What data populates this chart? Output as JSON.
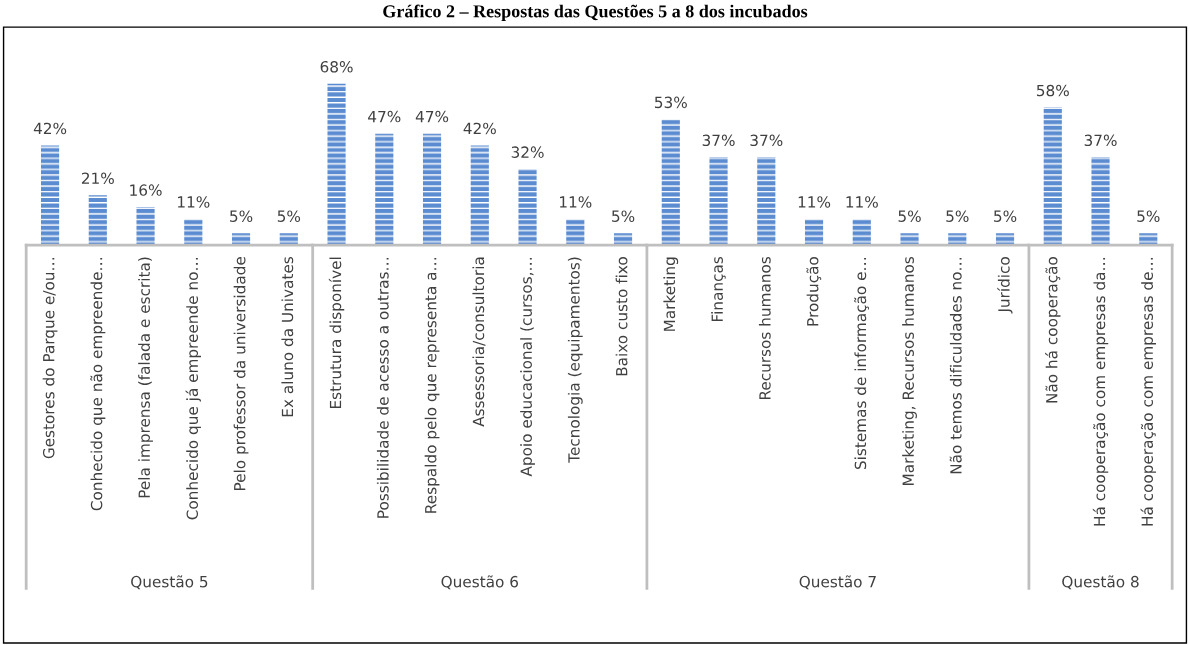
{
  "chart_data": [
    {
      "type": "bar",
      "xlabel": "Questão 5",
      "categories": [
        "Gestores do Parque e/ou…",
        "Conhecido que não empreende…",
        "Pela imprensa (falada e escrita)",
        "Conhecido que já empreende no…",
        "Pelo professor da universidade",
        "Ex aluno da Univates"
      ],
      "values": [
        42,
        21,
        16,
        11,
        5,
        5
      ],
      "value_labels": [
        "42%",
        "21%",
        "16%",
        "11%",
        "5%",
        "5%"
      ],
      "color": "#5b8bd0"
    },
    {
      "type": "bar",
      "title": "Gráfico 2 – Respostas das Questões 5 a 8 dos incubados",
      "xlabel": "Questão 6",
      "categories": [
        "Estrutura disponível",
        "Possibilidade de acesso a outras…",
        "Respaldo pelo que representa a…",
        "Assessoria/consultoria",
        "Apoio educacional (cursos,…",
        "Tecnologia (equipamentos)",
        "Baixo custo fixo"
      ],
      "values": [
        68,
        47,
        47,
        42,
        32,
        11,
        5
      ],
      "value_labels": [
        "68%",
        "47%",
        "47%",
        "42%",
        "32%",
        "11%",
        "5%"
      ],
      "color": "#5b8bd0"
    },
    {
      "type": "bar",
      "xlabel": "Questão 7",
      "categories": [
        "Marketing",
        "Finanças",
        "Recursos humanos",
        "Produção",
        "Sistemas de informação e…",
        "Marketing, Recursos humanos",
        "Não temos dificuldades no…",
        "Jurídico"
      ],
      "values": [
        53,
        37,
        37,
        11,
        11,
        5,
        5,
        5
      ],
      "value_labels": [
        "53%",
        "37%",
        "37%",
        "11%",
        "11%",
        "5%",
        "5%",
        "5%"
      ],
      "color": "#5b8bd0"
    },
    {
      "type": "bar",
      "xlabel": "Questão 8",
      "categories": [
        "Não há cooperação",
        "Há cooperação com empresas da…",
        "Há cooperação com empresas de…"
      ],
      "values": [
        58,
        37,
        5
      ],
      "value_labels": [
        "58%",
        "37%",
        "5%"
      ],
      "color": "#5b8bd0"
    }
  ]
}
